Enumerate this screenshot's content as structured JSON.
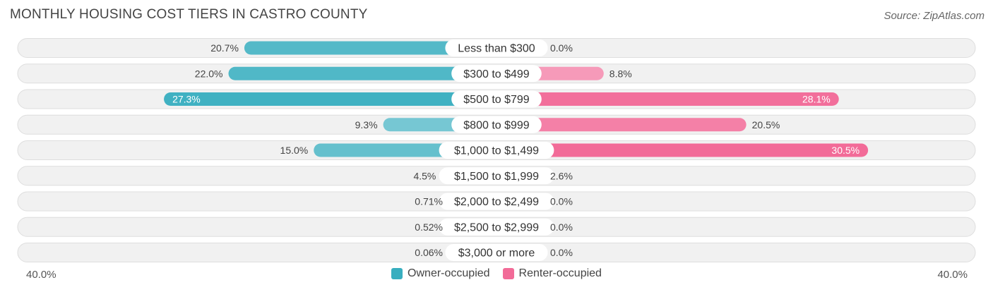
{
  "title": "MONTHLY HOUSING COST TIERS IN CASTRO COUNTY",
  "source": "Source: ZipAtlas.com",
  "axis": {
    "left_label": "40.0%",
    "right_label": "40.0%"
  },
  "legend": [
    {
      "label": "Owner-occupied",
      "color": "#38aebf"
    },
    {
      "label": "Renter-occupied",
      "color": "#f26b98"
    }
  ],
  "chart_data": {
    "type": "bar",
    "orientation": "diverging-horizontal",
    "categories": [
      "Less than $300",
      "$300 to $499",
      "$500 to $799",
      "$800 to $999",
      "$1,000 to $1,499",
      "$1,500 to $1,999",
      "$2,000 to $2,499",
      "$2,500 to $2,999",
      "$3,000 or more"
    ],
    "series": [
      {
        "name": "Owner-occupied",
        "values": [
          20.7,
          22.0,
          27.3,
          9.3,
          15.0,
          4.5,
          0.71,
          0.52,
          0.06
        ],
        "labels": [
          "20.7%",
          "22.0%",
          "27.3%",
          "9.3%",
          "15.0%",
          "4.5%",
          "0.71%",
          "0.52%",
          "0.06%"
        ]
      },
      {
        "name": "Renter-occupied",
        "values": [
          0.0,
          8.8,
          28.1,
          20.5,
          30.5,
          2.6,
          0.0,
          0.0,
          0.0
        ],
        "labels": [
          "0.0%",
          "8.8%",
          "28.1%",
          "20.5%",
          "30.5%",
          "2.6%",
          "0.0%",
          "0.0%",
          "0.0%"
        ]
      }
    ],
    "xlim": [
      -40,
      40
    ],
    "legend_position": "bottom-center"
  }
}
